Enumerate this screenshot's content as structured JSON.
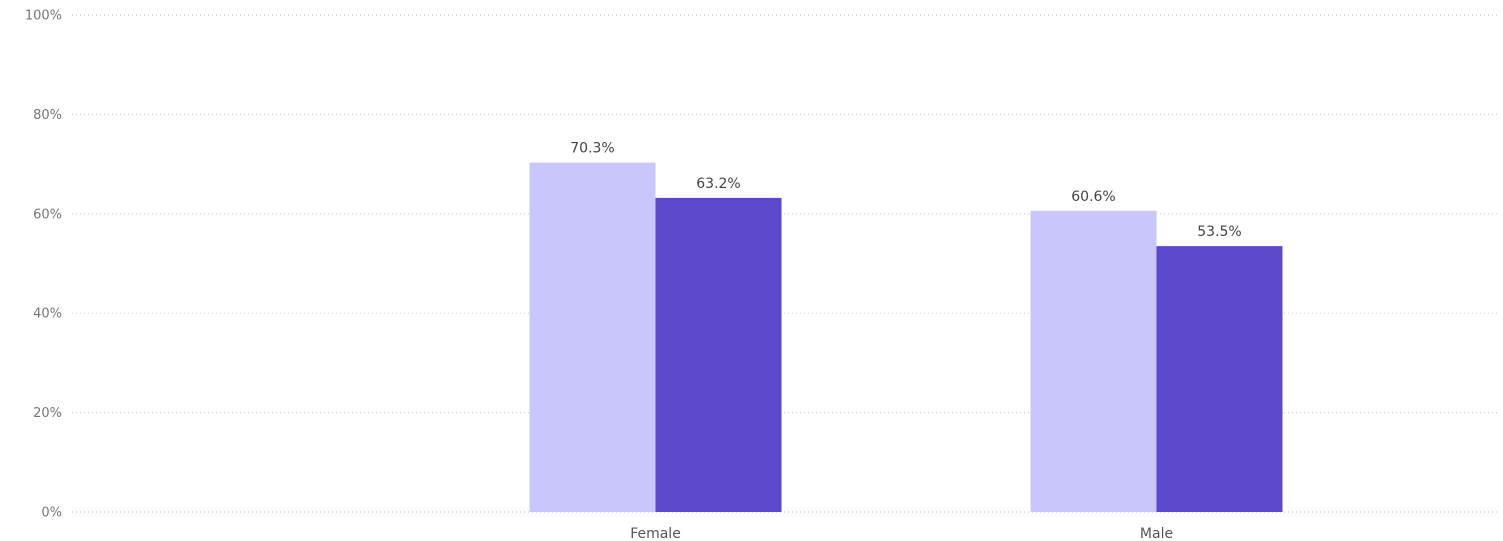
{
  "chart_data": {
    "type": "bar",
    "categories": [
      "Female",
      "Male"
    ],
    "series": [
      {
        "color": "#c8c6fa",
        "values": [
          70.3,
          60.6
        ]
      },
      {
        "color": "#5b49cb",
        "values": [
          63.2,
          53.5
        ]
      }
    ],
    "data_labels": [
      [
        "70.3%",
        "60.6%"
      ],
      [
        "63.2%",
        "53.5%"
      ]
    ],
    "ylim": [
      0,
      100
    ],
    "yticks": [
      0,
      20,
      40,
      60,
      80,
      100
    ],
    "ytick_labels": [
      "0%",
      "20%",
      "40%",
      "60%",
      "80%",
      "100%"
    ],
    "grid": true,
    "legend": "none"
  }
}
